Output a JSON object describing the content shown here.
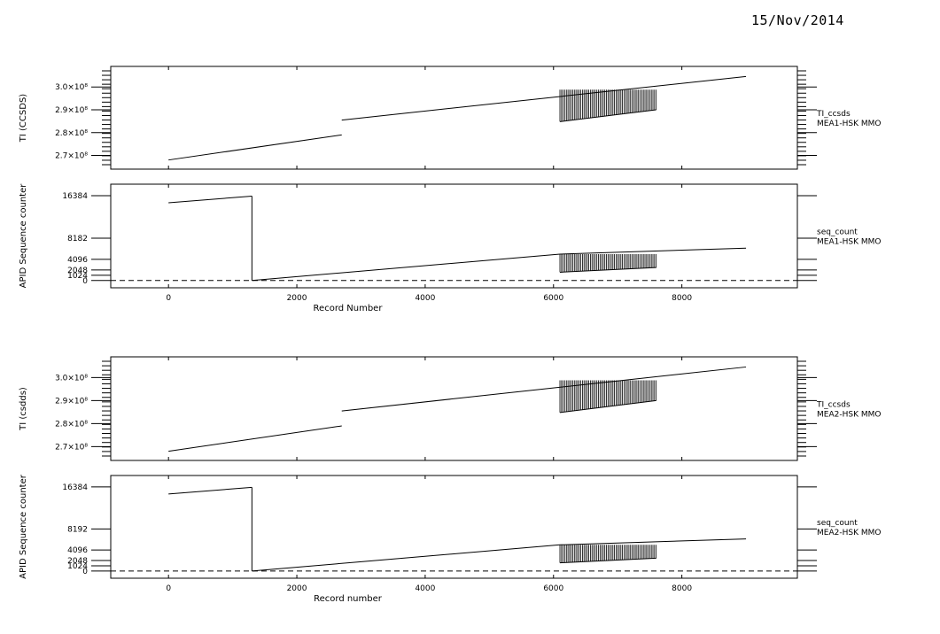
{
  "page": {
    "date": "15/Nov/2014"
  },
  "chart_data": [
    {
      "type": "line",
      "ylabel": "TI (CCSDS)",
      "xlim": [
        -900,
        9800
      ],
      "ylim": [
        264000000.0,
        309000000.0
      ],
      "yticks": [
        {
          "value": 270000000.0,
          "label": "2.7×10⁸"
        },
        {
          "value": 280000000.0,
          "label": "2.8×10⁸"
        },
        {
          "value": 290000000.0,
          "label": "2.9×10⁸"
        },
        {
          "value": 300000000.0,
          "label": "3.0×10⁸"
        }
      ],
      "legend": [
        "TI_ccsds",
        "MEA1-HSK MMO"
      ],
      "series": [
        {
          "segments": [
            {
              "x": [
                0,
                2700
              ],
              "y": [
                268000000.0,
                279000000.0
              ]
            },
            {
              "x": [
                2700,
                9000
              ],
              "y": [
                285500000.0,
                304600000.0
              ]
            }
          ],
          "comb": {
            "x": [
              6100,
              7600
            ],
            "top": [
              298800000.0,
              298800000.0
            ],
            "bottom": [
              284800000.0,
              290000000.0
            ],
            "lines": 60
          }
        }
      ]
    },
    {
      "type": "line",
      "ylabel": "APID Sequence counter",
      "xlabel": "Record Number",
      "xlim": [
        -900,
        9800
      ],
      "ylim": [
        -1400,
        18600
      ],
      "xticks": [
        0,
        2000,
        4000,
        6000,
        8000
      ],
      "yticks": [
        {
          "value": 0,
          "label": "0"
        },
        {
          "value": 1024,
          "label": "1024"
        },
        {
          "value": 2048,
          "label": "2048"
        },
        {
          "value": 4096,
          "label": "4096"
        },
        {
          "value": 8182,
          "label": "8182"
        },
        {
          "value": 16384,
          "label": "16384"
        }
      ],
      "baseline": 0,
      "legend": [
        "seq_count",
        "MEA1-HSK MMO"
      ],
      "series": [
        {
          "segments": [
            {
              "x": [
                0,
                1300
              ],
              "y": [
                15000,
                16300
              ]
            },
            {
              "x": [
                1300,
                1300
              ],
              "y": [
                16300,
                0
              ]
            },
            {
              "x": [
                1300,
                6100
              ],
              "y": [
                0,
                5100
              ]
            },
            {
              "x": [
                6100,
                9000
              ],
              "y": [
                5100,
                6250
              ]
            }
          ],
          "comb": {
            "x": [
              6100,
              7600
            ],
            "top": [
              5100,
              5100
            ],
            "bottom": [
              1600,
              2500
            ],
            "lines": 60
          }
        }
      ]
    },
    {
      "type": "line",
      "ylabel": "TI (csdds)",
      "xlim": [
        -900,
        9800
      ],
      "ylim": [
        264000000.0,
        309000000.0
      ],
      "yticks": [
        {
          "value": 270000000.0,
          "label": "2.7×10⁸"
        },
        {
          "value": 280000000.0,
          "label": "2.8×10⁸"
        },
        {
          "value": 290000000.0,
          "label": "2.9×10⁸"
        },
        {
          "value": 300000000.0,
          "label": "3.0×10⁸"
        }
      ],
      "legend": [
        "TI_ccsds",
        "MEA2-HSK MMO"
      ],
      "series": [
        {
          "segments": [
            {
              "x": [
                0,
                2700
              ],
              "y": [
                268000000.0,
                279000000.0
              ]
            },
            {
              "x": [
                2700,
                9000
              ],
              "y": [
                285500000.0,
                304600000.0
              ]
            }
          ],
          "comb": {
            "x": [
              6100,
              7600
            ],
            "top": [
              298800000.0,
              298800000.0
            ],
            "bottom": [
              284800000.0,
              290000000.0
            ],
            "lines": 60
          }
        }
      ]
    },
    {
      "type": "line",
      "ylabel": "APID Sequence counter",
      "xlabel": "Record number",
      "xlim": [
        -900,
        9800
      ],
      "ylim": [
        -1400,
        18600
      ],
      "xticks": [
        0,
        2000,
        4000,
        6000,
        8000
      ],
      "yticks": [
        {
          "value": 0,
          "label": "0"
        },
        {
          "value": 1024,
          "label": "1024"
        },
        {
          "value": 2048,
          "label": "2048"
        },
        {
          "value": 4096,
          "label": "4096"
        },
        {
          "value": 8192,
          "label": "8192"
        },
        {
          "value": 16384,
          "label": "16384"
        }
      ],
      "baseline": 0,
      "legend": [
        "seq_count",
        "MEA2-HSK MMO"
      ],
      "series": [
        {
          "segments": [
            {
              "x": [
                0,
                1300
              ],
              "y": [
                15000,
                16300
              ]
            },
            {
              "x": [
                1300,
                1300
              ],
              "y": [
                16300,
                0
              ]
            },
            {
              "x": [
                1300,
                6100
              ],
              "y": [
                0,
                5100
              ]
            },
            {
              "x": [
                6100,
                9000
              ],
              "y": [
                5100,
                6250
              ]
            }
          ],
          "comb": {
            "x": [
              6100,
              7600
            ],
            "top": [
              5100,
              5100
            ],
            "bottom": [
              1600,
              2500
            ],
            "lines": 60
          }
        }
      ]
    }
  ]
}
